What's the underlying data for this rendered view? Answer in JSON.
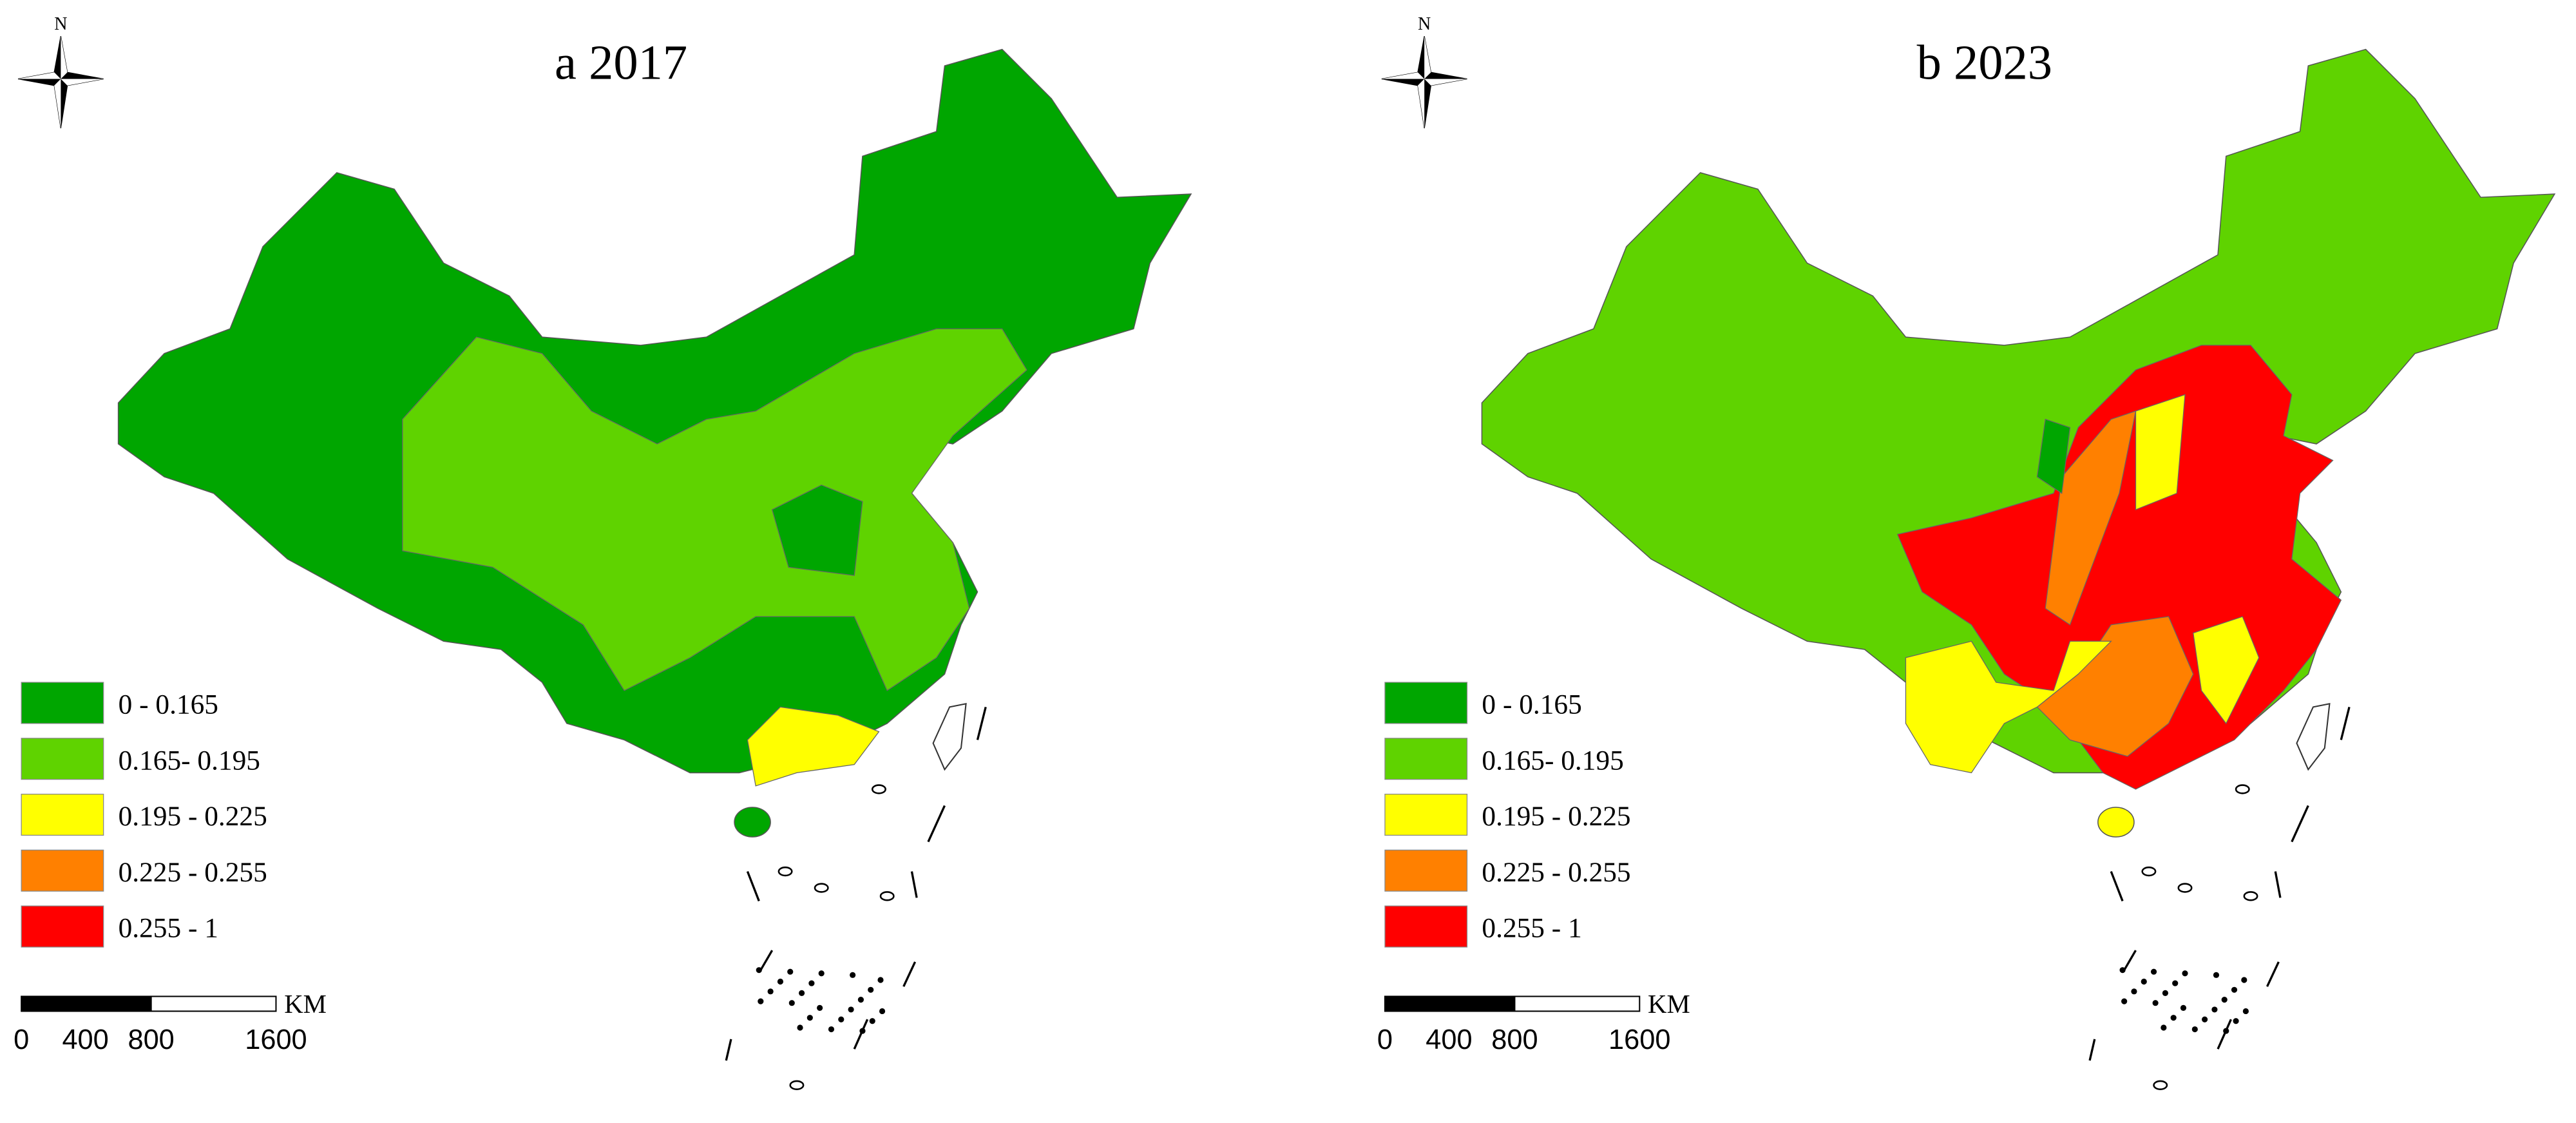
{
  "panels": [
    {
      "title": "a 2017",
      "north": "N",
      "legend": [
        {
          "label": "0 - 0.165",
          "color": "#00a600"
        },
        {
          "label": "0.165- 0.195",
          "color": "#5fd300"
        },
        {
          "label": "0.195 - 0.225",
          "color": "#ffff00"
        },
        {
          "label": "0.225 - 0.255",
          "color": "#ff8000"
        },
        {
          "label": "0.255 - 1",
          "color": "#ff0000"
        }
      ],
      "scale": {
        "unit": "KM",
        "labels": [
          "0",
          "400",
          "800",
          "1600"
        ]
      }
    },
    {
      "title": "b 2023",
      "north": "N",
      "legend": [
        {
          "label": "0 - 0.165",
          "color": "#00a600"
        },
        {
          "label": "0.165- 0.195",
          "color": "#5fd300"
        },
        {
          "label": "0.195 - 0.225",
          "color": "#ffff00"
        },
        {
          "label": "0.225 - 0.255",
          "color": "#ff8000"
        },
        {
          "label": "0.255 - 1",
          "color": "#ff0000"
        }
      ],
      "scale": {
        "unit": "KM",
        "labels": [
          "0",
          "400",
          "800",
          "1600"
        ]
      }
    }
  ]
}
